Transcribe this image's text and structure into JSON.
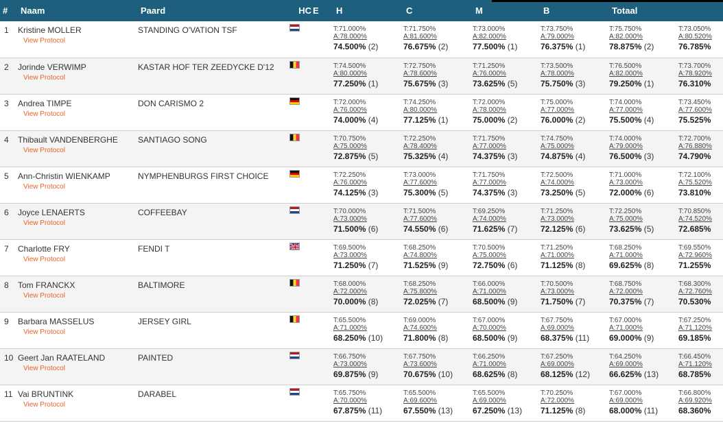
{
  "colors": {
    "header_bg": "#1d5f7d",
    "header_text": "#ffffff",
    "protocol_link": "#e8632b",
    "row_alt_bg": "#f4f4f4"
  },
  "headers": {
    "rank": "#",
    "name": "Naam",
    "horse": "Paard",
    "hc": "HC",
    "e": "E",
    "h": "H",
    "c": "C",
    "m": "M",
    "b": "B",
    "total": "Totaal"
  },
  "protocol_label": "View Protocol",
  "rows": [
    {
      "rank": "1",
      "rider": "Kristine MOLLER",
      "horse": "STANDING O'VATION TSF",
      "flag": "nl",
      "scores": [
        {
          "t": "T:71.000%",
          "a": "A:78.000%",
          "m": "74.500%",
          "r": "(2)"
        },
        {
          "t": "T:71.750%",
          "a": "A:81.600%",
          "m": "76.675%",
          "r": "(2)"
        },
        {
          "t": "T:73.000%",
          "a": "A:82.000%",
          "m": "77.500%",
          "r": "(1)"
        },
        {
          "t": "T:73.750%",
          "a": "A:79.000%",
          "m": "76.375%",
          "r": "(1)"
        },
        {
          "t": "T:75.750%",
          "a": "A:82.000%",
          "m": "78.875%",
          "r": "(2)"
        }
      ],
      "total": {
        "t": "T:73.050%",
        "a": "A:80.520%",
        "m": "76.785%"
      }
    },
    {
      "rank": "2",
      "rider": "Jorinde VERWIMP",
      "horse": "KASTAR HOF TER ZEEDYCKE D'12",
      "flag": "be",
      "scores": [
        {
          "t": "T:74.500%",
          "a": "A:80.000%",
          "m": "77.250%",
          "r": "(1)"
        },
        {
          "t": "T:72.750%",
          "a": "A:78.600%",
          "m": "75.675%",
          "r": "(3)"
        },
        {
          "t": "T:71.250%",
          "a": "A:76.000%",
          "m": "73.625%",
          "r": "(5)"
        },
        {
          "t": "T:73.500%",
          "a": "A:78.000%",
          "m": "75.750%",
          "r": "(3)"
        },
        {
          "t": "T:76.500%",
          "a": "A:82.000%",
          "m": "79.250%",
          "r": "(1)"
        }
      ],
      "total": {
        "t": "T:73.700%",
        "a": "A:78.920%",
        "m": "76.310%"
      }
    },
    {
      "rank": "3",
      "rider": "Andrea TIMPE",
      "horse": "DON CARISMO 2",
      "flag": "de",
      "scores": [
        {
          "t": "T:72.000%",
          "a": "A:76.000%",
          "m": "74.000%",
          "r": "(4)"
        },
        {
          "t": "T:74.250%",
          "a": "A:80.000%",
          "m": "77.125%",
          "r": "(1)"
        },
        {
          "t": "T:72.000%",
          "a": "A:78.000%",
          "m": "75.000%",
          "r": "(2)"
        },
        {
          "t": "T:75.000%",
          "a": "A:77.000%",
          "m": "76.000%",
          "r": "(2)"
        },
        {
          "t": "T:74.000%",
          "a": "A:77.000%",
          "m": "75.500%",
          "r": "(4)"
        }
      ],
      "total": {
        "t": "T:73.450%",
        "a": "A:77.600%",
        "m": "75.525%"
      }
    },
    {
      "rank": "4",
      "rider": "Thibault VANDENBERGHE",
      "horse": "SANTIAGO SONG",
      "flag": "be",
      "scores": [
        {
          "t": "T:70.750%",
          "a": "A:75.000%",
          "m": "72.875%",
          "r": "(5)"
        },
        {
          "t": "T:72.250%",
          "a": "A:78.400%",
          "m": "75.325%",
          "r": "(4)"
        },
        {
          "t": "T:71.750%",
          "a": "A:77.000%",
          "m": "74.375%",
          "r": "(3)"
        },
        {
          "t": "T:74.750%",
          "a": "A:75.000%",
          "m": "74.875%",
          "r": "(4)"
        },
        {
          "t": "T:74.000%",
          "a": "A:79.000%",
          "m": "76.500%",
          "r": "(3)"
        }
      ],
      "total": {
        "t": "T:72.700%",
        "a": "A:76.880%",
        "m": "74.790%"
      }
    },
    {
      "rank": "5",
      "rider": "Ann-Christin WIENKAMP",
      "horse": "NYMPHENBURGS FIRST CHOICE",
      "flag": "de",
      "scores": [
        {
          "t": "T:72.250%",
          "a": "A:76.000%",
          "m": "74.125%",
          "r": "(3)"
        },
        {
          "t": "T:73.000%",
          "a": "A:77.600%",
          "m": "75.300%",
          "r": "(5)"
        },
        {
          "t": "T:71.750%",
          "a": "A:77.000%",
          "m": "74.375%",
          "r": "(3)"
        },
        {
          "t": "T:72.500%",
          "a": "A:74.000%",
          "m": "73.250%",
          "r": "(5)"
        },
        {
          "t": "T:71.000%",
          "a": "A:73.000%",
          "m": "72.000%",
          "r": "(6)"
        }
      ],
      "total": {
        "t": "T:72.100%",
        "a": "A:75.520%",
        "m": "73.810%"
      }
    },
    {
      "rank": "6",
      "rider": "Joyce LENAERTS",
      "horse": "COFFEEBAY",
      "flag": "nl",
      "scores": [
        {
          "t": "T:70.000%",
          "a": "A:73.000%",
          "m": "71.500%",
          "r": "(6)"
        },
        {
          "t": "T:71.500%",
          "a": "A:77.600%",
          "m": "74.550%",
          "r": "(6)"
        },
        {
          "t": "T:69.250%",
          "a": "A:74.000%",
          "m": "71.625%",
          "r": "(7)"
        },
        {
          "t": "T:71.250%",
          "a": "A:73.000%",
          "m": "72.125%",
          "r": "(6)"
        },
        {
          "t": "T:72.250%",
          "a": "A:75.000%",
          "m": "73.625%",
          "r": "(5)"
        }
      ],
      "total": {
        "t": "T:70.850%",
        "a": "A:74.520%",
        "m": "72.685%"
      }
    },
    {
      "rank": "7",
      "rider": "Charlotte FRY",
      "horse": "FENDI T",
      "flag": "gb",
      "scores": [
        {
          "t": "T:69.500%",
          "a": "A:73.000%",
          "m": "71.250%",
          "r": "(7)"
        },
        {
          "t": "T:68.250%",
          "a": "A:74.800%",
          "m": "71.525%",
          "r": "(9)"
        },
        {
          "t": "T:70.500%",
          "a": "A:75.000%",
          "m": "72.750%",
          "r": "(6)"
        },
        {
          "t": "T:71.250%",
          "a": "A:71.000%",
          "m": "71.125%",
          "r": "(8)"
        },
        {
          "t": "T:68.250%",
          "a": "A:71.000%",
          "m": "69.625%",
          "r": "(8)"
        }
      ],
      "total": {
        "t": "T:69.550%",
        "a": "A:72.960%",
        "m": "71.255%"
      }
    },
    {
      "rank": "8",
      "rider": "Tom FRANCKX",
      "horse": "BALTIMORE",
      "flag": "be",
      "scores": [
        {
          "t": "T:68.000%",
          "a": "A:72.000%",
          "m": "70.000%",
          "r": "(8)"
        },
        {
          "t": "T:68.250%",
          "a": "A:75.800%",
          "m": "72.025%",
          "r": "(7)"
        },
        {
          "t": "T:66.000%",
          "a": "A:71.000%",
          "m": "68.500%",
          "r": "(9)"
        },
        {
          "t": "T:70.500%",
          "a": "A:73.000%",
          "m": "71.750%",
          "r": "(7)"
        },
        {
          "t": "T:68.750%",
          "a": "A:72.000%",
          "m": "70.375%",
          "r": "(7)"
        }
      ],
      "total": {
        "t": "T:68.300%",
        "a": "A:72.760%",
        "m": "70.530%"
      }
    },
    {
      "rank": "9",
      "rider": "Barbara MASSELUS",
      "horse": "JERSEY GIRL",
      "flag": "be",
      "scores": [
        {
          "t": "T:65.500%",
          "a": "A:71.000%",
          "m": "68.250%",
          "r": "(10)"
        },
        {
          "t": "T:69.000%",
          "a": "A:74.600%",
          "m": "71.800%",
          "r": "(8)"
        },
        {
          "t": "T:67.000%",
          "a": "A:70.000%",
          "m": "68.500%",
          "r": "(9)"
        },
        {
          "t": "T:67.750%",
          "a": "A:69.000%",
          "m": "68.375%",
          "r": "(11)"
        },
        {
          "t": "T:67.000%",
          "a": "A:71.000%",
          "m": "69.000%",
          "r": "(9)"
        }
      ],
      "total": {
        "t": "T:67.250%",
        "a": "A:71.120%",
        "m": "69.185%"
      }
    },
    {
      "rank": "10",
      "rider": "Geert Jan RAATELAND",
      "horse": "PAINTED",
      "flag": "nl",
      "scores": [
        {
          "t": "T:66.750%",
          "a": "A:73.000%",
          "m": "69.875%",
          "r": "(9)"
        },
        {
          "t": "T:67.750%",
          "a": "A:73.600%",
          "m": "70.675%",
          "r": "(10)"
        },
        {
          "t": "T:66.250%",
          "a": "A:71.000%",
          "m": "68.625%",
          "r": "(8)"
        },
        {
          "t": "T:67.250%",
          "a": "A:69.000%",
          "m": "68.125%",
          "r": "(12)"
        },
        {
          "t": "T:64.250%",
          "a": "A:69.000%",
          "m": "66.625%",
          "r": "(13)"
        }
      ],
      "total": {
        "t": "T:66.450%",
        "a": "A:71.120%",
        "m": "68.785%"
      }
    },
    {
      "rank": "11",
      "rider": "Vai BRUNTINK",
      "horse": "DARABEL",
      "flag": "nl",
      "scores": [
        {
          "t": "T:65.750%",
          "a": "A:70.000%",
          "m": "67.875%",
          "r": "(11)"
        },
        {
          "t": "T:65.500%",
          "a": "A:69.600%",
          "m": "67.550%",
          "r": "(13)"
        },
        {
          "t": "T:65.500%",
          "a": "A:69.000%",
          "m": "67.250%",
          "r": "(13)"
        },
        {
          "t": "T:70.250%",
          "a": "A:72.000%",
          "m": "71.125%",
          "r": "(8)"
        },
        {
          "t": "T:67.000%",
          "a": "A:69.000%",
          "m": "68.000%",
          "r": "(11)"
        }
      ],
      "total": {
        "t": "T:66.800%",
        "a": "A:69.920%",
        "m": "68.360%"
      }
    }
  ]
}
